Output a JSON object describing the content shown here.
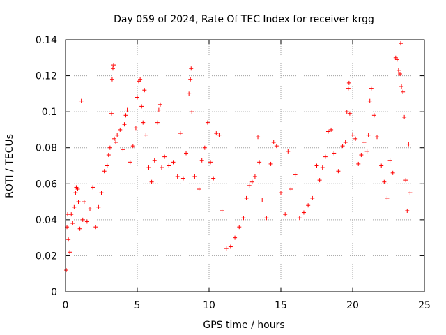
{
  "chart_data": {
    "type": "scatter",
    "title": "Day 059 of 2024, Rate Of TEC Index for receiver krgg",
    "xlabel": "GPS time / hours",
    "ylabel": "ROTI / TECUs",
    "xlim": [
      0,
      25
    ],
    "ylim": [
      0,
      0.14
    ],
    "x_ticks": [
      0,
      5,
      10,
      15,
      20,
      25
    ],
    "y_ticks": [
      0,
      0.02,
      0.04,
      0.06,
      0.08,
      0.1,
      0.12,
      0.14
    ],
    "x_tick_labels": [
      "0",
      "5",
      "10",
      "15",
      "20",
      "25"
    ],
    "y_tick_labels": [
      "0",
      "0.02",
      "0.04",
      "0.06",
      "0.08",
      "0.1",
      "0.12",
      "0.14"
    ],
    "grid": true,
    "marker": "+",
    "color": "#ff0000",
    "series": [
      {
        "name": "ROTI",
        "points": [
          [
            0.05,
            0.012
          ],
          [
            0.1,
            0.036
          ],
          [
            0.15,
            0.043
          ],
          [
            0.2,
            0.029
          ],
          [
            0.3,
            0.022
          ],
          [
            0.4,
            0.043
          ],
          [
            0.5,
            0.038
          ],
          [
            0.6,
            0.047
          ],
          [
            0.7,
            0.055
          ],
          [
            0.75,
            0.058
          ],
          [
            0.8,
            0.051
          ],
          [
            0.85,
            0.057
          ],
          [
            0.9,
            0.05
          ],
          [
            1.0,
            0.035
          ],
          [
            1.1,
            0.106
          ],
          [
            1.2,
            0.04
          ],
          [
            1.3,
            0.05
          ],
          [
            1.5,
            0.039
          ],
          [
            1.7,
            0.046
          ],
          [
            1.9,
            0.058
          ],
          [
            2.1,
            0.036
          ],
          [
            2.3,
            0.047
          ],
          [
            2.5,
            0.055
          ],
          [
            2.7,
            0.067
          ],
          [
            2.9,
            0.07
          ],
          [
            3.0,
            0.076
          ],
          [
            3.1,
            0.08
          ],
          [
            3.2,
            0.099
          ],
          [
            3.25,
            0.118
          ],
          [
            3.3,
            0.124
          ],
          [
            3.35,
            0.126
          ],
          [
            3.4,
            0.085
          ],
          [
            3.5,
            0.083
          ],
          [
            3.6,
            0.087
          ],
          [
            3.8,
            0.09
          ],
          [
            4.0,
            0.079
          ],
          [
            4.1,
            0.093
          ],
          [
            4.2,
            0.098
          ],
          [
            4.3,
            0.101
          ],
          [
            4.5,
            0.072
          ],
          [
            4.7,
            0.081
          ],
          [
            4.9,
            0.091
          ],
          [
            5.0,
            0.108
          ],
          [
            5.1,
            0.117
          ],
          [
            5.2,
            0.118
          ],
          [
            5.3,
            0.103
          ],
          [
            5.4,
            0.094
          ],
          [
            5.5,
            0.112
          ],
          [
            5.6,
            0.087
          ],
          [
            5.8,
            0.069
          ],
          [
            6.0,
            0.061
          ],
          [
            6.2,
            0.073
          ],
          [
            6.4,
            0.094
          ],
          [
            6.5,
            0.101
          ],
          [
            6.6,
            0.104
          ],
          [
            6.7,
            0.069
          ],
          [
            6.9,
            0.075
          ],
          [
            7.2,
            0.07
          ],
          [
            7.5,
            0.072
          ],
          [
            7.8,
            0.064
          ],
          [
            8.0,
            0.088
          ],
          [
            8.2,
            0.063
          ],
          [
            8.4,
            0.077
          ],
          [
            8.6,
            0.11
          ],
          [
            8.7,
            0.118
          ],
          [
            8.75,
            0.124
          ],
          [
            8.8,
            0.1
          ],
          [
            9.0,
            0.064
          ],
          [
            9.3,
            0.057
          ],
          [
            9.5,
            0.073
          ],
          [
            9.7,
            0.08
          ],
          [
            9.9,
            0.094
          ],
          [
            10.1,
            0.072
          ],
          [
            10.3,
            0.063
          ],
          [
            10.5,
            0.088
          ],
          [
            10.7,
            0.087
          ],
          [
            10.9,
            0.045
          ],
          [
            11.2,
            0.024
          ],
          [
            11.5,
            0.025
          ],
          [
            11.8,
            0.03
          ],
          [
            12.1,
            0.036
          ],
          [
            12.4,
            0.041
          ],
          [
            12.6,
            0.052
          ],
          [
            12.8,
            0.059
          ],
          [
            13.0,
            0.061
          ],
          [
            13.2,
            0.064
          ],
          [
            13.4,
            0.086
          ],
          [
            13.5,
            0.072
          ],
          [
            13.7,
            0.051
          ],
          [
            14.0,
            0.041
          ],
          [
            14.3,
            0.071
          ],
          [
            14.5,
            0.083
          ],
          [
            14.7,
            0.081
          ],
          [
            15.0,
            0.055
          ],
          [
            15.3,
            0.043
          ],
          [
            15.5,
            0.078
          ],
          [
            15.7,
            0.057
          ],
          [
            16.0,
            0.065
          ],
          [
            16.3,
            0.041
          ],
          [
            16.6,
            0.044
          ],
          [
            16.9,
            0.048
          ],
          [
            17.2,
            0.052
          ],
          [
            17.5,
            0.07
          ],
          [
            17.7,
            0.062
          ],
          [
            17.9,
            0.069
          ],
          [
            18.1,
            0.075
          ],
          [
            18.3,
            0.089
          ],
          [
            18.5,
            0.09
          ],
          [
            18.7,
            0.077
          ],
          [
            19.0,
            0.067
          ],
          [
            19.3,
            0.081
          ],
          [
            19.5,
            0.083
          ],
          [
            19.6,
            0.1
          ],
          [
            19.7,
            0.113
          ],
          [
            19.75,
            0.116
          ],
          [
            19.8,
            0.099
          ],
          [
            20.0,
            0.087
          ],
          [
            20.2,
            0.085
          ],
          [
            20.4,
            0.071
          ],
          [
            20.6,
            0.076
          ],
          [
            20.8,
            0.083
          ],
          [
            21.0,
            0.078
          ],
          [
            21.1,
            0.087
          ],
          [
            21.2,
            0.106
          ],
          [
            21.3,
            0.113
          ],
          [
            21.5,
            0.098
          ],
          [
            21.7,
            0.086
          ],
          [
            22.0,
            0.07
          ],
          [
            22.2,
            0.061
          ],
          [
            22.4,
            0.052
          ],
          [
            22.6,
            0.073
          ],
          [
            22.8,
            0.066
          ],
          [
            23.0,
            0.13
          ],
          [
            23.1,
            0.129
          ],
          [
            23.2,
            0.123
          ],
          [
            23.3,
            0.121
          ],
          [
            23.35,
            0.138
          ],
          [
            23.4,
            0.114
          ],
          [
            23.5,
            0.111
          ],
          [
            23.6,
            0.097
          ],
          [
            23.7,
            0.062
          ],
          [
            23.8,
            0.045
          ],
          [
            23.9,
            0.082
          ],
          [
            24.0,
            0.055
          ]
        ]
      }
    ]
  }
}
